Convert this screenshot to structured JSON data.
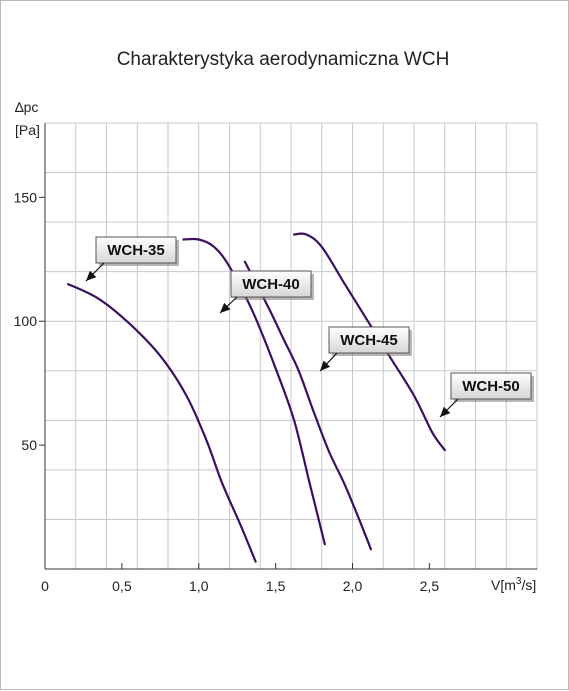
{
  "chart_data": {
    "type": "line",
    "title": "Charakterystyka aerodynamiczna WCH",
    "ylabel_line1": "∆pc",
    "ylabel_line2": "[Pa]",
    "xlabel": "V[m",
    "xlabel_sup": "3",
    "xlabel_tail": "/s]",
    "x_origin_label": "0",
    "xlim": [
      0,
      3.2
    ],
    "ylim": [
      0,
      180
    ],
    "x_ticks": [
      {
        "value": 0.5,
        "label": "0,5"
      },
      {
        "value": 1.0,
        "label": "1,0"
      },
      {
        "value": 1.5,
        "label": "1,5"
      },
      {
        "value": 2.0,
        "label": "2,0"
      },
      {
        "value": 2.5,
        "label": "2,5"
      }
    ],
    "y_ticks": [
      {
        "value": 50,
        "label": "50"
      },
      {
        "value": 100,
        "label": "100"
      },
      {
        "value": 150,
        "label": "150"
      }
    ],
    "grid": true,
    "line_color": "#3a1060",
    "series": [
      {
        "name": "WCH-35",
        "points": [
          [
            0.15,
            115
          ],
          [
            0.35,
            109
          ],
          [
            0.55,
            99
          ],
          [
            0.75,
            86
          ],
          [
            0.92,
            70
          ],
          [
            1.05,
            52
          ],
          [
            1.15,
            35
          ],
          [
            1.27,
            18
          ],
          [
            1.37,
            3
          ]
        ]
      },
      {
        "name": "WCH-40",
        "points": [
          [
            0.9,
            133
          ],
          [
            1.0,
            133
          ],
          [
            1.1,
            130
          ],
          [
            1.2,
            122
          ],
          [
            1.35,
            104
          ],
          [
            1.5,
            81
          ],
          [
            1.62,
            60
          ],
          [
            1.72,
            35
          ],
          [
            1.82,
            10
          ]
        ]
      },
      {
        "name": "WCH-45",
        "points": [
          [
            1.3,
            124
          ],
          [
            1.45,
            106
          ],
          [
            1.55,
            93
          ],
          [
            1.65,
            80
          ],
          [
            1.75,
            63
          ],
          [
            1.85,
            47
          ],
          [
            1.95,
            34
          ],
          [
            2.05,
            19
          ],
          [
            2.12,
            8
          ]
        ]
      },
      {
        "name": "WCH-50",
        "points": [
          [
            1.62,
            135
          ],
          [
            1.7,
            135
          ],
          [
            1.8,
            130
          ],
          [
            1.95,
            115
          ],
          [
            2.1,
            100
          ],
          [
            2.25,
            85
          ],
          [
            2.4,
            70
          ],
          [
            2.52,
            55
          ],
          [
            2.6,
            48
          ]
        ]
      }
    ],
    "callouts": [
      {
        "label": "WCH-35",
        "target_series": 0
      },
      {
        "label": "WCH-40",
        "target_series": 1
      },
      {
        "label": "WCH-45",
        "target_series": 2
      },
      {
        "label": "WCH-50",
        "target_series": 3
      }
    ]
  }
}
